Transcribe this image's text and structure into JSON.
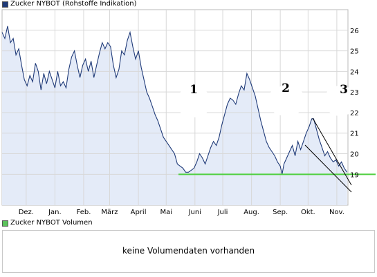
{
  "price_legend": {
    "label": "Zucker NYBOT (Rohstoffe Indikation)",
    "color": "#1f3a78"
  },
  "volume_legend": {
    "label": "Zucker NYBOT Volumen",
    "color": "#5cc25c"
  },
  "volume_message": "keine Volumendaten vorhanden",
  "colors": {
    "line": "#1f3a78",
    "fill": "#e4ebf8",
    "support": "#4fcf3f",
    "trend": "#000000"
  },
  "chart_data": {
    "type": "line",
    "title": "Zucker NYBOT (Rohstoffe Indikation)",
    "xlabel": "",
    "ylabel": "",
    "ylim": [
      17.5,
      27
    ],
    "yticks": [
      19,
      20,
      21,
      22,
      23,
      24,
      25,
      26
    ],
    "month_ticks": [
      {
        "label": "Dez.",
        "day": 26
      },
      {
        "label": "Jan.",
        "day": 57
      },
      {
        "label": "Feb.",
        "day": 88
      },
      {
        "label": "März",
        "day": 116
      },
      {
        "label": "April",
        "day": 147
      },
      {
        "label": "Mai",
        "day": 177
      },
      {
        "label": "Juni",
        "day": 208
      },
      {
        "label": "Juli",
        "day": 238
      },
      {
        "label": "Aug.",
        "day": 269
      },
      {
        "label": "Sep.",
        "day": 300
      },
      {
        "label": "Okt.",
        "day": 330
      },
      {
        "label": "Nov.",
        "day": 361
      }
    ],
    "xlim": [
      0,
      373
    ],
    "series": [
      {
        "name": "Zucker NYBOT",
        "points": [
          [
            0,
            25.9
          ],
          [
            3,
            25.6
          ],
          [
            6,
            26.2
          ],
          [
            9,
            25.4
          ],
          [
            12,
            25.6
          ],
          [
            15,
            24.8
          ],
          [
            18,
            25.1
          ],
          [
            21,
            24.3
          ],
          [
            24,
            23.6
          ],
          [
            27,
            23.3
          ],
          [
            30,
            23.8
          ],
          [
            33,
            23.5
          ],
          [
            36,
            24.4
          ],
          [
            39,
            24.0
          ],
          [
            42,
            23.1
          ],
          [
            45,
            23.9
          ],
          [
            48,
            23.4
          ],
          [
            51,
            24.0
          ],
          [
            54,
            23.6
          ],
          [
            57,
            23.2
          ],
          [
            60,
            24.0
          ],
          [
            63,
            23.3
          ],
          [
            66,
            23.5
          ],
          [
            69,
            23.2
          ],
          [
            72,
            24.1
          ],
          [
            75,
            24.7
          ],
          [
            78,
            25.0
          ],
          [
            81,
            24.3
          ],
          [
            84,
            23.7
          ],
          [
            87,
            24.3
          ],
          [
            90,
            24.6
          ],
          [
            93,
            24.0
          ],
          [
            96,
            24.5
          ],
          [
            99,
            23.7
          ],
          [
            102,
            24.3
          ],
          [
            105,
            24.9
          ],
          [
            108,
            25.4
          ],
          [
            111,
            25.1
          ],
          [
            114,
            25.4
          ],
          [
            117,
            25.2
          ],
          [
            120,
            24.3
          ],
          [
            123,
            23.7
          ],
          [
            126,
            24.1
          ],
          [
            129,
            25.0
          ],
          [
            132,
            24.8
          ],
          [
            135,
            25.5
          ],
          [
            138,
            25.9
          ],
          [
            141,
            25.2
          ],
          [
            144,
            24.6
          ],
          [
            147,
            25.0
          ],
          [
            150,
            24.2
          ],
          [
            153,
            23.6
          ],
          [
            156,
            23.0
          ],
          [
            159,
            22.7
          ],
          [
            162,
            22.3
          ],
          [
            165,
            21.9
          ],
          [
            168,
            21.6
          ],
          [
            171,
            21.2
          ],
          [
            174,
            20.8
          ],
          [
            177,
            20.6
          ],
          [
            180,
            20.4
          ],
          [
            183,
            20.2
          ],
          [
            186,
            20.0
          ],
          [
            189,
            19.5
          ],
          [
            192,
            19.4
          ],
          [
            195,
            19.3
          ],
          [
            198,
            19.1
          ],
          [
            201,
            19.1
          ],
          [
            204,
            19.2
          ],
          [
            207,
            19.3
          ],
          [
            210,
            19.6
          ],
          [
            213,
            20.0
          ],
          [
            216,
            19.8
          ],
          [
            219,
            19.5
          ],
          [
            222,
            19.9
          ],
          [
            225,
            20.3
          ],
          [
            228,
            20.6
          ],
          [
            231,
            20.4
          ],
          [
            234,
            20.8
          ],
          [
            237,
            21.4
          ],
          [
            240,
            21.9
          ],
          [
            243,
            22.4
          ],
          [
            246,
            22.7
          ],
          [
            249,
            22.6
          ],
          [
            252,
            22.4
          ],
          [
            255,
            22.9
          ],
          [
            258,
            23.3
          ],
          [
            261,
            23.1
          ],
          [
            264,
            23.9
          ],
          [
            267,
            23.6
          ],
          [
            270,
            23.2
          ],
          [
            273,
            22.8
          ],
          [
            276,
            22.2
          ],
          [
            279,
            21.6
          ],
          [
            282,
            21.1
          ],
          [
            285,
            20.6
          ],
          [
            288,
            20.3
          ],
          [
            291,
            20.1
          ],
          [
            294,
            19.9
          ],
          [
            297,
            19.6
          ],
          [
            300,
            19.4
          ],
          [
            302,
            19.0
          ],
          [
            304,
            19.5
          ],
          [
            307,
            19.8
          ],
          [
            310,
            20.1
          ],
          [
            313,
            20.4
          ],
          [
            316,
            19.9
          ],
          [
            319,
            20.6
          ],
          [
            322,
            20.2
          ],
          [
            325,
            20.6
          ],
          [
            328,
            21.0
          ],
          [
            331,
            21.3
          ],
          [
            334,
            21.7
          ],
          [
            336,
            21.7
          ],
          [
            339,
            21.2
          ],
          [
            342,
            20.7
          ],
          [
            345,
            20.3
          ],
          [
            348,
            19.9
          ],
          [
            351,
            20.1
          ],
          [
            354,
            19.8
          ],
          [
            357,
            19.6
          ],
          [
            360,
            19.7
          ],
          [
            363,
            19.4
          ],
          [
            366,
            19.6
          ],
          [
            369,
            19.3
          ],
          [
            372,
            19.1
          ]
        ]
      }
    ],
    "support_level": 19,
    "annotations": [
      "1",
      "2",
      "3"
    ]
  }
}
